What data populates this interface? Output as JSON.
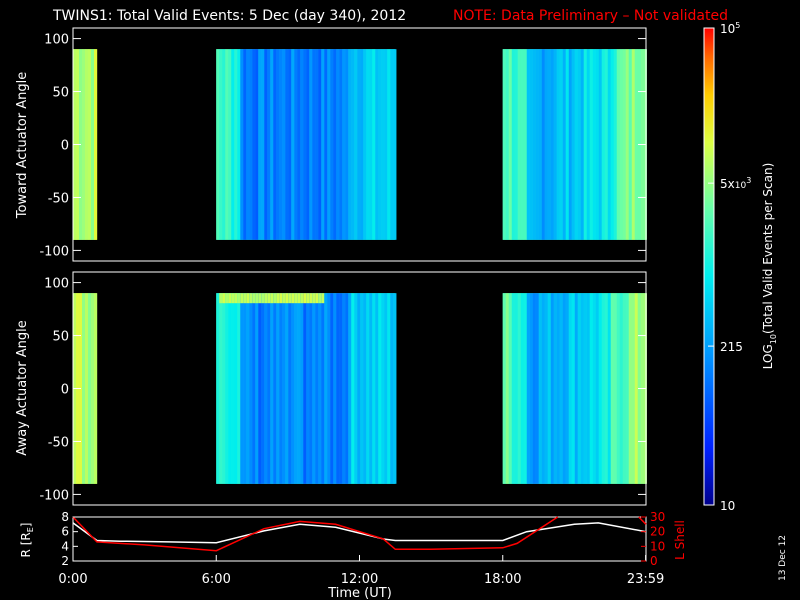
{
  "header": {
    "title": "TWINS1: Total Valid Events:  5 Dec (day 340), 2012",
    "note": "NOTE: Data Preliminary – Not validated"
  },
  "side_date": "13 Dec 12",
  "colors": {
    "background": "#000000",
    "axes": "#ffffff",
    "note": "#ff0000",
    "r_line": "#ffffff",
    "lshell_line": "#ff0000"
  },
  "chart_data": [
    {
      "type": "heatmap",
      "panel": "top",
      "ylabel": "Toward Actuator Angle",
      "xlim": [
        0,
        24
      ],
      "ylim": [
        -110,
        110
      ],
      "y_ticks": [
        100,
        50,
        0,
        -50,
        -100
      ],
      "y_tick_labels": [
        "100",
        "50",
        "0",
        "-50",
        "-100"
      ],
      "data_y_range": [
        -90,
        90
      ],
      "data_segments": [
        {
          "start": "0:00",
          "end": "1:00",
          "start_h": 0.0,
          "end_h": 1.0
        },
        {
          "start": "6:00",
          "end": "13:30",
          "start_h": 6.0,
          "end_h": 13.5
        },
        {
          "start": "18:00",
          "end": "24:00",
          "start_h": 18.0,
          "end_h": 24.0
        }
      ]
    },
    {
      "type": "heatmap",
      "panel": "middle",
      "ylabel": "Away Actuator Angle",
      "xlim": [
        0,
        24
      ],
      "ylim": [
        -110,
        110
      ],
      "y_ticks": [
        100,
        50,
        0,
        -50,
        -100
      ],
      "y_tick_labels": [
        "100",
        "50",
        "0",
        "-50",
        "-100"
      ],
      "data_y_range": [
        -90,
        90
      ],
      "data_segments": [
        {
          "start": "0:00",
          "end": "1:00",
          "start_h": 0.0,
          "end_h": 1.0
        },
        {
          "start": "6:00",
          "end": "13:30",
          "start_h": 6.0,
          "end_h": 13.5
        },
        {
          "start": "18:00",
          "end": "24:00",
          "start_h": 18.0,
          "end_h": 24.0
        }
      ]
    },
    {
      "type": "line",
      "panel": "bottom",
      "xlabel": "Time (UT)",
      "x_ticks": [
        0,
        6,
        12,
        18,
        23.983
      ],
      "x_tick_labels": [
        "0:00",
        "6:00",
        "12:00",
        "18:00",
        "23:59"
      ],
      "xlim": [
        0,
        24
      ],
      "left_axis": {
        "label_main": "R [R",
        "label_sub": "E",
        "label_close": "]",
        "ylim": [
          2,
          8
        ],
        "ticks": [
          2,
          4,
          6,
          8
        ],
        "tick_labels": [
          "2",
          "4",
          "6",
          "8"
        ]
      },
      "right_axis": {
        "label": "L Shell",
        "ylim": [
          0,
          30
        ],
        "ticks": [
          0,
          10,
          20,
          30
        ],
        "tick_labels": [
          "0",
          "10",
          "20",
          "30"
        ]
      },
      "series": [
        {
          "axis": "left",
          "color": "#ffffff",
          "x": [
            0,
            1,
            2,
            4,
            6,
            8,
            9.5,
            11,
            13,
            13.5,
            15,
            18,
            19,
            21,
            22,
            24
          ],
          "y": [
            7.2,
            4.8,
            4.7,
            4.6,
            4.5,
            6.1,
            7.0,
            6.6,
            5.0,
            4.8,
            4.8,
            4.8,
            6.0,
            7.0,
            7.2,
            6.0
          ]
        },
        {
          "axis": "right",
          "color": "#ff0000",
          "x": [
            0,
            1,
            3,
            6,
            8,
            9.5,
            11,
            13,
            13.5,
            15,
            18,
            18.6,
            20.3
          ],
          "y": [
            30,
            13,
            11,
            7,
            22,
            27,
            25,
            15,
            8,
            8,
            9,
            12,
            30
          ]
        },
        {
          "axis": "right",
          "color": "#ff0000",
          "x": [
            23.7,
            24
          ],
          "y": [
            30,
            25
          ]
        }
      ]
    }
  ],
  "colorbar": {
    "label_pre": "LOG",
    "label_sub": "10",
    "label_post": "(Total Valid Events per Scan)",
    "log_min": 1,
    "log_max": 5,
    "tick_labels": [
      {
        "text": "10",
        "value": 10
      },
      {
        "text": "215",
        "value": 215
      },
      {
        "mantissa": "5x",
        "base": "10",
        "exp": "3",
        "value": 5000
      },
      {
        "base": "10",
        "exp": "5",
        "value": 100000
      }
    ]
  }
}
